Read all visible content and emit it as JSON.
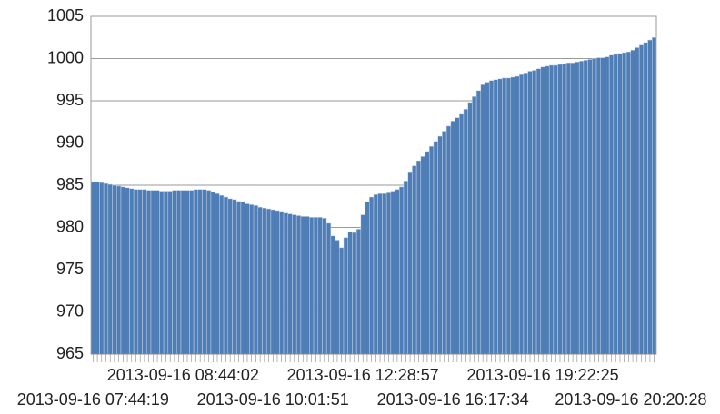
{
  "chart_data": {
    "type": "bar",
    "categories": [
      "2013-09-16 07:44:19",
      null,
      null,
      null,
      null,
      null,
      null,
      null,
      null,
      null,
      null,
      null,
      null,
      null,
      null,
      null,
      null,
      null,
      null,
      null,
      null,
      "2013-09-16 08:44:02",
      null,
      null,
      null,
      null,
      null,
      null,
      null,
      null,
      null,
      null,
      null,
      null,
      null,
      null,
      null,
      null,
      null,
      null,
      null,
      null,
      "2013-09-16 10:01:51",
      null,
      null,
      null,
      null,
      null,
      null,
      null,
      null,
      null,
      null,
      null,
      null,
      null,
      null,
      null,
      null,
      null,
      null,
      null,
      null,
      "2013-09-16 12:28:57",
      null,
      null,
      null,
      null,
      null,
      null,
      null,
      null,
      null,
      null,
      null,
      null,
      null,
      null,
      null,
      null,
      null,
      null,
      null,
      null,
      "2013-09-16 16:17:34",
      null,
      null,
      null,
      null,
      null,
      null,
      null,
      null,
      null,
      null,
      null,
      null,
      null,
      null,
      null,
      null,
      null,
      null,
      null,
      null,
      "2013-09-16 19:22:25",
      null,
      null,
      null,
      null,
      null,
      null,
      null,
      null,
      null,
      null,
      null,
      null,
      null,
      null,
      null,
      null,
      null,
      null,
      null,
      null,
      "2013-09-16 20:20:28",
      null,
      null,
      null,
      null,
      null
    ],
    "values": [
      985.4,
      985.4,
      985.3,
      985.2,
      985.1,
      985.0,
      984.9,
      984.8,
      984.7,
      984.6,
      984.5,
      984.5,
      984.5,
      984.4,
      984.4,
      984.4,
      984.3,
      984.3,
      984.3,
      984.4,
      984.4,
      984.4,
      984.4,
      984.4,
      984.5,
      984.5,
      984.5,
      984.4,
      984.2,
      984.0,
      983.8,
      983.6,
      983.4,
      983.3,
      983.1,
      983.0,
      982.8,
      982.7,
      982.6,
      982.4,
      982.3,
      982.2,
      982.1,
      982.0,
      981.9,
      981.7,
      981.6,
      981.5,
      981.4,
      981.3,
      981.3,
      981.2,
      981.2,
      981.2,
      981.1,
      980.5,
      979.0,
      978.5,
      977.6,
      978.8,
      979.5,
      979.4,
      979.8,
      981.5,
      983.0,
      983.6,
      983.9,
      984.0,
      984.0,
      984.1,
      984.3,
      984.5,
      984.8,
      985.5,
      986.6,
      987.3,
      987.9,
      988.4,
      989.0,
      989.6,
      990.2,
      990.8,
      991.4,
      992.0,
      992.6,
      993.0,
      993.4,
      994.0,
      994.8,
      995.5,
      996.2,
      996.9,
      997.2,
      997.4,
      997.5,
      997.6,
      997.7,
      997.7,
      997.8,
      997.9,
      998.1,
      998.3,
      998.5,
      998.6,
      998.8,
      999.0,
      999.1,
      999.2,
      999.2,
      999.3,
      999.4,
      999.5,
      999.5,
      999.6,
      999.7,
      999.8,
      999.9,
      1000.0,
      1000.1,
      1000.1,
      1000.2,
      1000.4,
      1000.5,
      1000.6,
      1000.7,
      1000.8,
      1001.0,
      1001.3,
      1001.6,
      1001.9,
      1002.2,
      1002.5
    ],
    "color": "#4f7db5",
    "ylim": [
      965,
      1005
    ],
    "yticks": [
      965,
      970,
      975,
      980,
      985,
      990,
      995,
      1000,
      1005
    ],
    "grid": true
  }
}
